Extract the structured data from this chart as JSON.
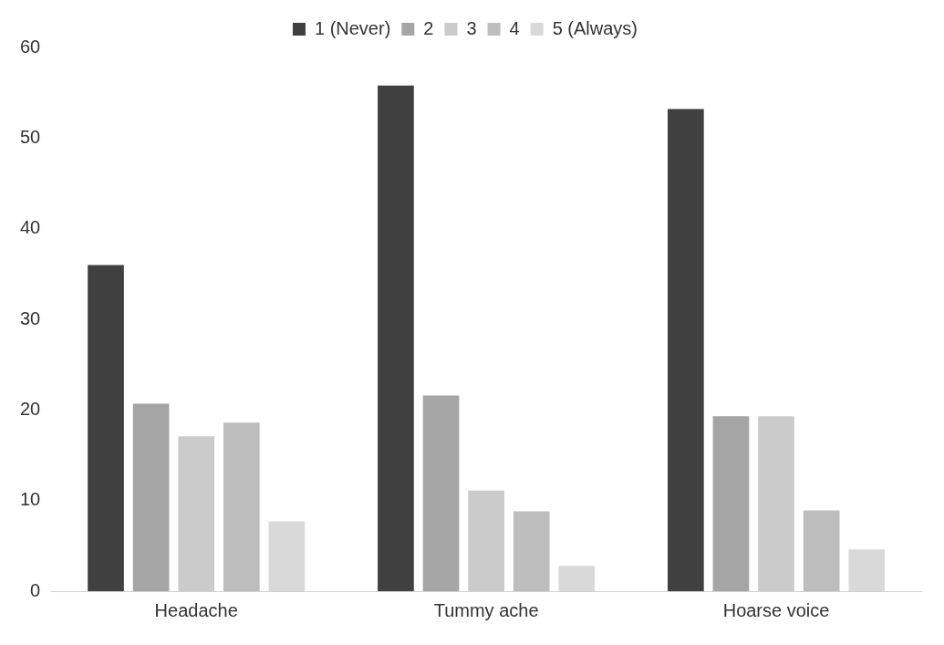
{
  "chart_data": {
    "type": "bar",
    "categories": [
      "Headache",
      "Tummy ache",
      "Hoarse voice"
    ],
    "series": [
      {
        "name": "1 (Never)",
        "color": "#404040",
        "values": [
          36,
          55.8,
          53.2
        ]
      },
      {
        "name": "2",
        "color": "#a5a5a5",
        "values": [
          20.7,
          21.6,
          19.3
        ]
      },
      {
        "name": "3",
        "color": "#cbcbcb",
        "values": [
          17.1,
          11.1,
          19.3
        ]
      },
      {
        "name": "4",
        "color": "#bdbdbd",
        "values": [
          18.6,
          8.8,
          8.9
        ]
      },
      {
        "name": "5 (Always)",
        "color": "#d9d9d9",
        "values": [
          7.7,
          2.8,
          4.6
        ]
      }
    ],
    "ylim": [
      0,
      60
    ],
    "yticks": [
      0,
      10,
      20,
      30,
      40,
      50,
      60
    ],
    "grid": false,
    "legend": "top"
  }
}
